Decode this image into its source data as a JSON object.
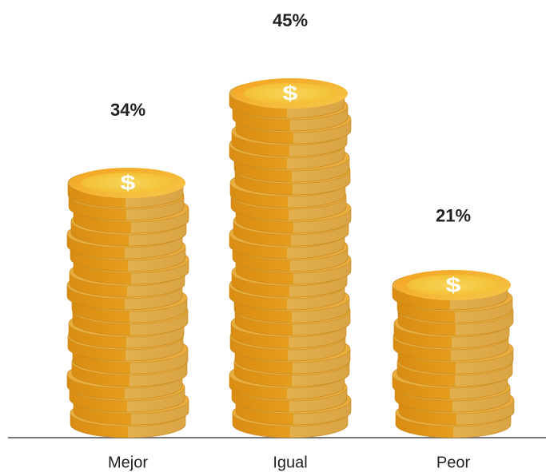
{
  "chart_data": {
    "type": "coin-stack",
    "categories": [
      "Mejor",
      "Igual",
      "Peor"
    ],
    "values": [
      34,
      45,
      21
    ],
    "value_labels": [
      "34%",
      "45%",
      "21%"
    ],
    "color": "#e9b040"
  }
}
